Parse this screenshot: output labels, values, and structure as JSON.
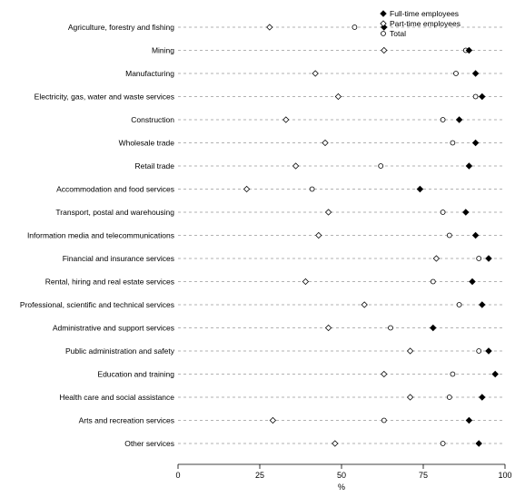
{
  "chart_data": {
    "type": "scatter",
    "orientation": "horizontal-dot",
    "xlabel": "%",
    "xlim": [
      0,
      100
    ],
    "xticks": [
      0,
      25,
      50,
      75,
      100
    ],
    "grid": "dashed horizontal guide per category",
    "legend_position": "top-right",
    "categories": [
      "Agriculture, forestry and fishing",
      "Mining",
      "Manufacturing",
      "Electricity, gas, water and waste services",
      "Construction",
      "Wholesale trade",
      "Retail trade",
      "Accommodation and food services",
      "Transport, postal and warehousing",
      "Information media and telecommunications",
      "Financial and insurance services",
      "Rental, hiring and real estate services",
      "Professional, scientific and technical services",
      "Administrative and support services",
      "Public administration and safety",
      "Education and training",
      "Health care and social assistance",
      "Arts and recreation services",
      "Other services"
    ],
    "series": [
      {
        "name": "Full-time employees",
        "marker": "filled-diamond",
        "color": "#000000",
        "values": [
          63,
          89,
          91,
          93,
          86,
          91,
          89,
          74,
          88,
          91,
          95,
          90,
          93,
          78,
          95,
          97,
          93,
          89,
          92
        ]
      },
      {
        "name": "Part-time employees",
        "marker": "open-diamond",
        "color": "#000000",
        "values": [
          28,
          63,
          42,
          49,
          33,
          45,
          36,
          21,
          46,
          43,
          79,
          39,
          57,
          46,
          71,
          63,
          71,
          29,
          48
        ]
      },
      {
        "name": "Total",
        "marker": "open-circle",
        "color": "#000000",
        "values": [
          54,
          88,
          85,
          91,
          81,
          84,
          62,
          41,
          81,
          83,
          92,
          78,
          86,
          65,
          92,
          84,
          83,
          63,
          81
        ]
      }
    ]
  }
}
